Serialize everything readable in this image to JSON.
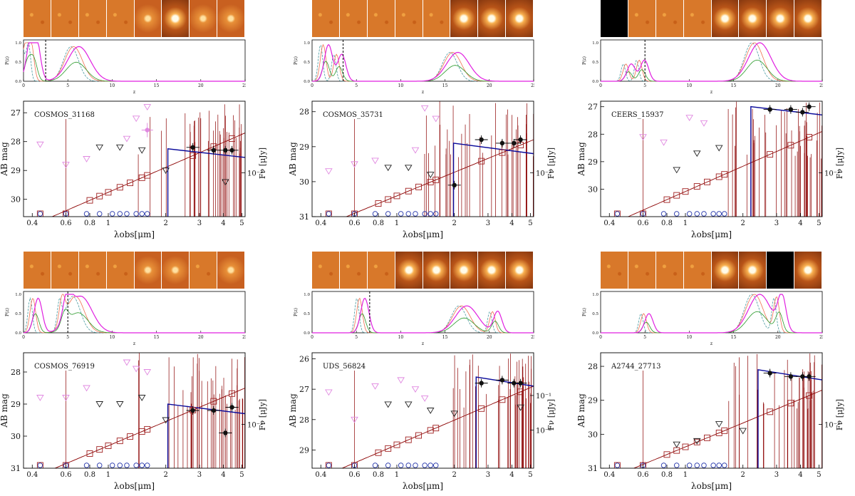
{
  "figure": {
    "pz_axis": {
      "xlabel": "z",
      "ylabel": "P(z)",
      "xticks": [
        0,
        5,
        10,
        15,
        20,
        25
      ],
      "yticks": [
        "0.0",
        "0.5",
        "1.0"
      ]
    },
    "sed_axis": {
      "xlabel": "λobs[μm]",
      "ylabel_left": "AB mag",
      "ylabel_right": "Fν [μJy]",
      "xticks": [
        "0.4",
        "0.6",
        "0.8",
        "1",
        "2",
        "3",
        "4",
        "5"
      ]
    },
    "colors": {
      "hst_upper": "#e088e0",
      "jwst_upper": "#222222",
      "model_low": "#8b0000",
      "model_high": "#0a0a9a",
      "synth_box": "#a02020",
      "circles": "#2233aa",
      "pz_cyan": "#4a9aa0",
      "pz_orange": "#f07050",
      "pz_green": "#2a9a2a",
      "pz_magenta": "#e020e0"
    }
  },
  "chart_data": [
    {
      "type": "line",
      "id": "COSMOS_31168",
      "label": "COSMOS_31168",
      "stamps": [
        "noise",
        "noise",
        "noise",
        "noise",
        "faint",
        "source",
        "faint",
        "faint"
      ],
      "pz": {
        "zbest": 2.5,
        "peaks": [
          [
            5.8,
            0.9
          ],
          [
            1.0,
            1.0
          ],
          [
            0.3,
            0.9
          ]
        ],
        "highz": null
      },
      "sed": {
        "ylim": [
          30.6,
          26.6
        ],
        "yticks": [
          27,
          28,
          29,
          30
        ],
        "fnu_ticks": [
          "10⁻²"
        ],
        "break_um": 2.05,
        "plateau_mag": 28.25,
        "hst_upper": [
          [
            0.44,
            28.1
          ],
          [
            0.6,
            28.8
          ],
          [
            0.77,
            28.6
          ],
          [
            1.25,
            27.9
          ],
          [
            1.4,
            27.2
          ],
          [
            1.6,
            26.8
          ]
        ],
        "jwst_upper": [
          [
            0.9,
            28.2
          ],
          [
            1.15,
            28.2
          ],
          [
            1.5,
            28.3
          ],
          [
            2.0,
            29.0
          ],
          [
            4.1,
            29.4
          ]
        ],
        "detections": [
          [
            2.77,
            28.2
          ],
          [
            3.56,
            28.3
          ],
          [
            4.1,
            28.3
          ],
          [
            4.44,
            28.3
          ]
        ],
        "hst_detection": [
          1.6,
          27.6
        ]
      }
    },
    {
      "type": "line",
      "id": "COSMOS_35731",
      "label": "COSMOS_35731",
      "stamps": [
        "noise",
        "noise",
        "noise",
        "noise",
        "noise",
        "source",
        "source",
        "source"
      ],
      "pz": {
        "zbest": 3.5,
        "peaks": [
          [
            16.0,
            0.75
          ],
          [
            1.4,
            0.95
          ],
          [
            2.9,
            0.7
          ]
        ],
        "highz": 16.0
      },
      "sed": {
        "ylim": [
          31.0,
          27.7
        ],
        "yticks": [
          28,
          29,
          30,
          31
        ],
        "fnu_ticks": [
          "10⁻²"
        ],
        "break_um": 1.98,
        "plateau_mag": 28.9,
        "hst_upper": [
          [
            0.44,
            29.7
          ],
          [
            0.6,
            29.5
          ],
          [
            0.77,
            29.4
          ],
          [
            1.25,
            29.1
          ],
          [
            1.4,
            27.9
          ],
          [
            1.6,
            28.2
          ]
        ],
        "jwst_upper": [
          [
            0.9,
            29.6
          ],
          [
            1.15,
            29.6
          ],
          [
            1.5,
            29.8
          ]
        ],
        "detections": [
          [
            2.0,
            30.1
          ],
          [
            2.77,
            28.8
          ],
          [
            3.56,
            28.9
          ],
          [
            4.1,
            28.9
          ],
          [
            4.44,
            28.8
          ]
        ],
        "hst_detection": null
      }
    },
    {
      "type": "line",
      "id": "CEERS_15937",
      "label": "CEERS_15937",
      "stamps": [
        "black",
        "noise",
        "noise",
        "noise",
        "source",
        "source",
        "source",
        "source"
      ],
      "pz": {
        "zbest": 5.0,
        "peaks": [
          [
            17.5,
            1.0
          ],
          [
            4.5,
            0.55
          ],
          [
            3.0,
            0.45
          ]
        ],
        "highz": 17.5
      },
      "sed": {
        "ylim": [
          31.0,
          26.8
        ],
        "yticks": [
          27,
          28,
          29,
          30
        ],
        "fnu_ticks": [
          "10⁻²"
        ],
        "break_um": 2.2,
        "plateau_mag": 27.0,
        "hst_upper": [
          [
            0.6,
            28.1
          ],
          [
            0.77,
            28.3
          ],
          [
            1.05,
            27.4
          ],
          [
            1.25,
            27.6
          ]
        ],
        "jwst_upper": [
          [
            0.9,
            29.3
          ],
          [
            1.15,
            28.7
          ],
          [
            1.5,
            28.5
          ]
        ],
        "detections": [
          [
            2.77,
            27.1
          ],
          [
            3.56,
            27.1
          ],
          [
            4.1,
            27.2
          ],
          [
            4.44,
            27.0
          ]
        ],
        "hst_detection": null
      }
    },
    {
      "type": "line",
      "id": "COSMOS_76919",
      "label": "COSMOS_76919",
      "stamps": [
        "noise",
        "noise",
        "noise",
        "noise",
        "faint",
        "faint",
        "noise",
        "faint"
      ],
      "pz": {
        "zbest": 5.0,
        "peaks": [
          [
            6.0,
            0.95
          ],
          [
            4.5,
            0.7
          ],
          [
            1.2,
            0.9
          ]
        ],
        "highz": 16.5
      },
      "sed": {
        "ylim": [
          31.0,
          27.4
        ],
        "yticks": [
          28,
          29,
          30,
          31
        ],
        "fnu_ticks": [
          "10⁻²"
        ],
        "break_um": 2.05,
        "plateau_mag": 29.0,
        "hst_upper": [
          [
            0.44,
            28.8
          ],
          [
            0.6,
            28.8
          ],
          [
            0.77,
            28.5
          ],
          [
            1.25,
            27.7
          ],
          [
            1.4,
            27.9
          ],
          [
            1.6,
            28.0
          ]
        ],
        "jwst_upper": [
          [
            0.9,
            29.0
          ],
          [
            1.15,
            29.0
          ],
          [
            1.5,
            28.8
          ],
          [
            2.0,
            29.5
          ]
        ],
        "detections": [
          [
            2.77,
            29.2
          ],
          [
            3.56,
            29.2
          ],
          [
            4.1,
            29.9
          ],
          [
            4.44,
            29.1
          ]
        ],
        "hst_detection": null
      }
    },
    {
      "type": "line",
      "id": "UDS_56824",
      "label": "UDS_56824",
      "stamps": [
        "noise",
        "noise",
        "noise",
        "source",
        "source",
        "source",
        "source",
        "source"
      ],
      "pz": {
        "zbest": 6.5,
        "peaks": [
          [
            17.0,
            0.7
          ],
          [
            20.5,
            0.55
          ],
          [
            5.5,
            0.9
          ]
        ],
        "highz": 17.0
      },
      "sed": {
        "ylim": [
          29.6,
          25.8
        ],
        "yticks": [
          26,
          27,
          28,
          29
        ],
        "fnu_ticks": [
          "10⁻¹",
          "10⁻²"
        ],
        "break_um": 2.6,
        "plateau_mag": 26.6,
        "hst_upper": [
          [
            0.44,
            27.1
          ],
          [
            0.6,
            28.0
          ],
          [
            0.77,
            26.9
          ],
          [
            1.05,
            26.7
          ],
          [
            1.25,
            27.0
          ],
          [
            1.4,
            27.3
          ]
        ],
        "jwst_upper": [
          [
            0.9,
            27.5
          ],
          [
            1.15,
            27.5
          ],
          [
            1.5,
            27.7
          ],
          [
            2.0,
            27.8
          ],
          [
            4.44,
            27.6
          ]
        ],
        "detections": [
          [
            2.77,
            26.8
          ],
          [
            3.56,
            26.7
          ],
          [
            4.1,
            26.8
          ],
          [
            4.44,
            26.8
          ]
        ],
        "hst_detection": null
      }
    },
    {
      "type": "line",
      "id": "A2744_27713",
      "label": "A2744_27713",
      "stamps": [
        "noise",
        "noise",
        "noise",
        "noise",
        "source",
        "source",
        "black",
        "source"
      ],
      "pz": {
        "zbest": null,
        "peaks": [
          [
            17.5,
            1.0
          ],
          [
            5.0,
            0.5
          ],
          [
            20.0,
            0.9
          ]
        ],
        "highz": 17.5
      },
      "sed": {
        "ylim": [
          31.0,
          27.6
        ],
        "yticks": [
          28,
          29,
          30,
          31
        ],
        "fnu_ticks": [
          "10⁻²"
        ],
        "break_um": 2.4,
        "plateau_mag": 28.1,
        "hst_upper": [],
        "jwst_upper": [
          [
            0.9,
            30.3
          ],
          [
            1.15,
            30.2
          ],
          [
            1.5,
            29.7
          ],
          [
            2.0,
            29.9
          ]
        ],
        "detections": [
          [
            2.77,
            28.2
          ],
          [
            3.56,
            28.3
          ],
          [
            4.1,
            28.3
          ],
          [
            4.44,
            28.3
          ]
        ],
        "hst_detection": null
      }
    }
  ]
}
